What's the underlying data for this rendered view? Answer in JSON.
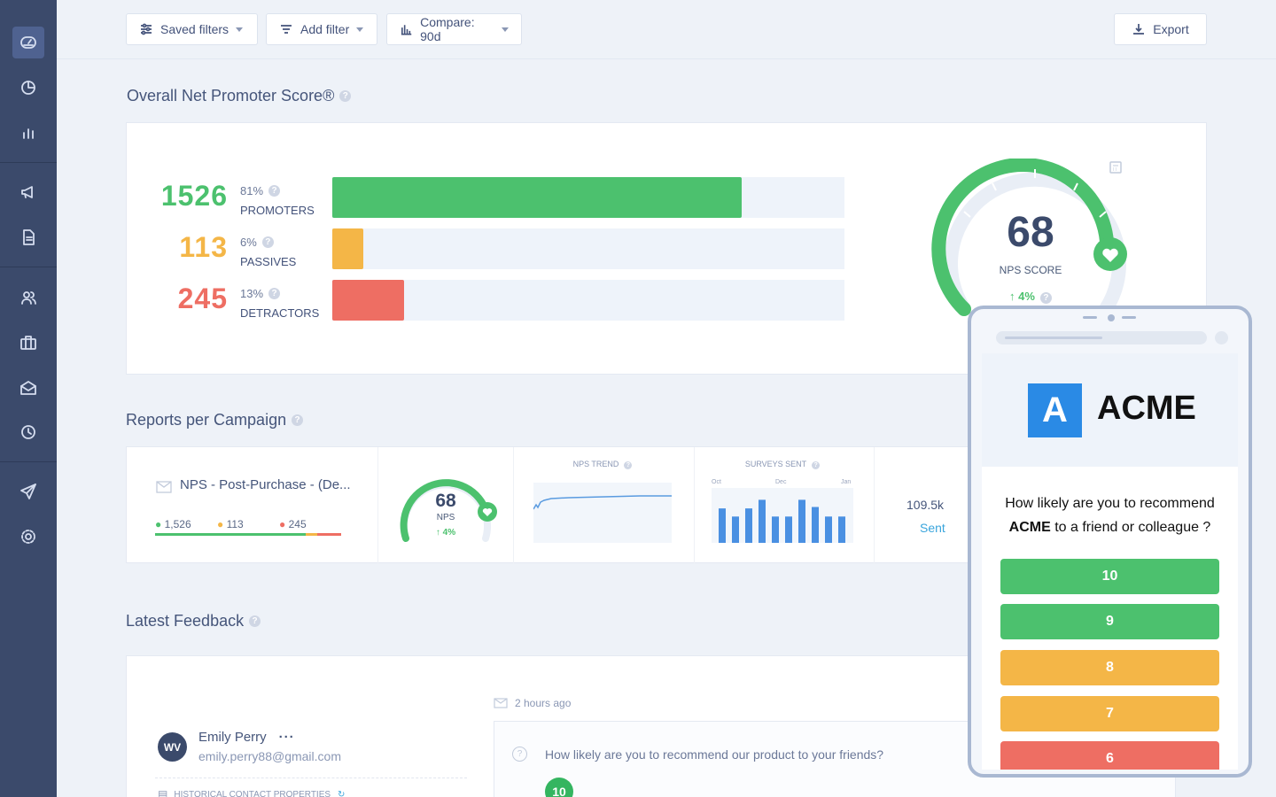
{
  "toolbar": {
    "saved_filters": "Saved filters",
    "add_filter": "Add filter",
    "compare": "Compare: 90d",
    "export": "Export"
  },
  "nps": {
    "title": "Overall Net Promoter Score®",
    "rows": [
      {
        "count": "1526",
        "pct": "81%",
        "label": "PROMOTERS",
        "color": "#4cc16e",
        "fill": 0.8
      },
      {
        "count": "113",
        "pct": "6%",
        "label": "PASSIVES",
        "color": "#f4b647",
        "fill": 0.06
      },
      {
        "count": "245",
        "pct": "13%",
        "label": "DETRACTORS",
        "color": "#ee6e63",
        "fill": 0.14
      }
    ],
    "score": "68",
    "score_label": "NPS SCORE",
    "change": "↑ 4%"
  },
  "campaigns": {
    "title": "Reports per Campaign",
    "row": {
      "name": "NPS - Post-Purchase - (De...",
      "promoters": "1,526",
      "passives": "113",
      "detractors": "245",
      "nps": "68",
      "nps_label": "NPS",
      "nps_change": "↑ 4%",
      "trend_label": "NPS TREND",
      "sent_label": "SURVEYS SENT",
      "months": [
        "Oct",
        "Dec",
        "Jan"
      ],
      "sent_values": [
        0.72,
        0.55,
        0.72,
        0.9,
        0.55,
        0.55,
        0.9,
        0.75,
        0.55,
        0.55
      ],
      "sent_count": "109.5k",
      "sent_word": "Sent"
    }
  },
  "feedback": {
    "title": "Latest Feedback",
    "avatar": "WV",
    "name": "Emily Perry",
    "email": "emily.perry88@gmail.com",
    "props": "HISTORICAL CONTACT PROPERTIES",
    "time": "2 hours ago",
    "question": "How likely are you to recommend our product to your friends?",
    "score": "10"
  },
  "phone": {
    "logo_letter": "A",
    "brand": "ACME",
    "q_line1": "How likely are you to recommend",
    "q_brand": "ACME",
    "q_line2": " to a friend or colleague ?",
    "ratings": [
      {
        "label": "10",
        "color": "#4cc16e"
      },
      {
        "label": "9",
        "color": "#4cc16e"
      },
      {
        "label": "8",
        "color": "#f4b647"
      },
      {
        "label": "7",
        "color": "#f4b647"
      },
      {
        "label": "6",
        "color": "#ee6e63"
      }
    ]
  }
}
